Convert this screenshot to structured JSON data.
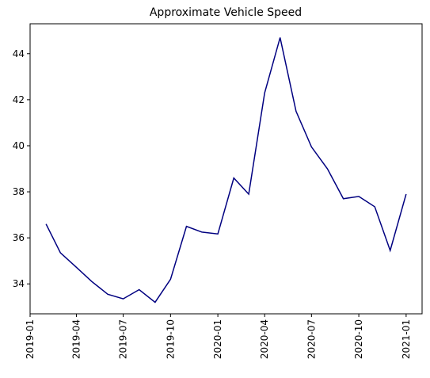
{
  "chart_data": {
    "type": "line",
    "title": "Approximate Vehicle Speed",
    "x": [
      "2019-02",
      "2019-03",
      "2019-04",
      "2019-05",
      "2019-06",
      "2019-07",
      "2019-08",
      "2019-09",
      "2019-10",
      "2019-11",
      "2019-12",
      "2020-01",
      "2020-02",
      "2020-03",
      "2020-04",
      "2020-05",
      "2020-06",
      "2020-07",
      "2020-08",
      "2020-09",
      "2020-10",
      "2020-11",
      "2020-12",
      "2021-01"
    ],
    "series": [
      {
        "color": "#000080",
        "values": [
          36.6,
          35.35,
          34.72,
          34.1,
          33.55,
          33.35,
          33.75,
          33.2,
          34.2,
          36.5,
          36.25,
          36.17,
          38.6,
          37.9,
          42.3,
          44.7,
          41.5,
          39.95,
          39.0,
          37.7,
          37.8,
          37.35,
          35.45,
          37.9
        ]
      }
    ],
    "xlim": [
      "2019-01",
      "2021-02"
    ],
    "xticks": [
      "2019-01",
      "2019-04",
      "2019-07",
      "2019-10",
      "2020-01",
      "2020-04",
      "2020-07",
      "2020-10",
      "2021-01"
    ],
    "ylim": [
      32.7,
      45.3
    ],
    "yticks": [
      34,
      36,
      38,
      40,
      42,
      44
    ]
  }
}
